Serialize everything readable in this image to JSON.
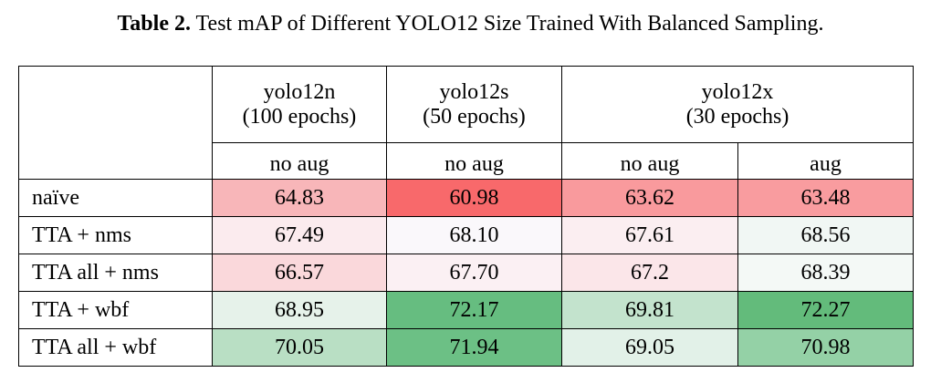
{
  "caption": {
    "label": "Table 2.",
    "text": " Test mAP of Different YOLO12 Size Trained With Balanced Sampling."
  },
  "table": {
    "models": [
      {
        "name": "yolo12n",
        "epochs": "(100 epochs)"
      },
      {
        "name": "yolo12s",
        "epochs": "(50 epochs)"
      },
      {
        "name": "yolo12x",
        "epochs": "(30 epochs)"
      }
    ],
    "aug_labels": [
      "no aug",
      "no aug",
      "no aug",
      "aug"
    ],
    "rows": [
      {
        "label": "naïve",
        "values": [
          "64.83",
          "60.98",
          "63.62",
          "63.48"
        ],
        "colors": [
          "#f8b6b9",
          "#f8696b",
          "#f99a9d",
          "#f99c9f"
        ]
      },
      {
        "label": "TTA + nms",
        "values": [
          "67.49",
          "68.10",
          "67.61",
          "68.56"
        ],
        "colors": [
          "#fbebee",
          "#faf8fb",
          "#fbeef1",
          "#f1f7f4"
        ]
      },
      {
        "label": "TTA all + nms",
        "values": [
          "66.57",
          "67.70",
          "67.2",
          "68.39"
        ],
        "colors": [
          "#fad8db",
          "#fbf0f3",
          "#fbe6e9",
          "#f4f9f6"
        ]
      },
      {
        "label": "TTA + wbf",
        "values": [
          "68.95",
          "72.17",
          "69.81",
          "72.27"
        ],
        "colors": [
          "#e6f2ea",
          "#66bd80",
          "#c3e3cd",
          "#63bb7b"
        ]
      },
      {
        "label": "TTA all + wbf",
        "values": [
          "70.05",
          "71.94",
          "69.05",
          "70.98"
        ],
        "colors": [
          "#b9dfc4",
          "#6cc085",
          "#e2f1e8",
          "#94d1a6"
        ]
      }
    ]
  }
}
